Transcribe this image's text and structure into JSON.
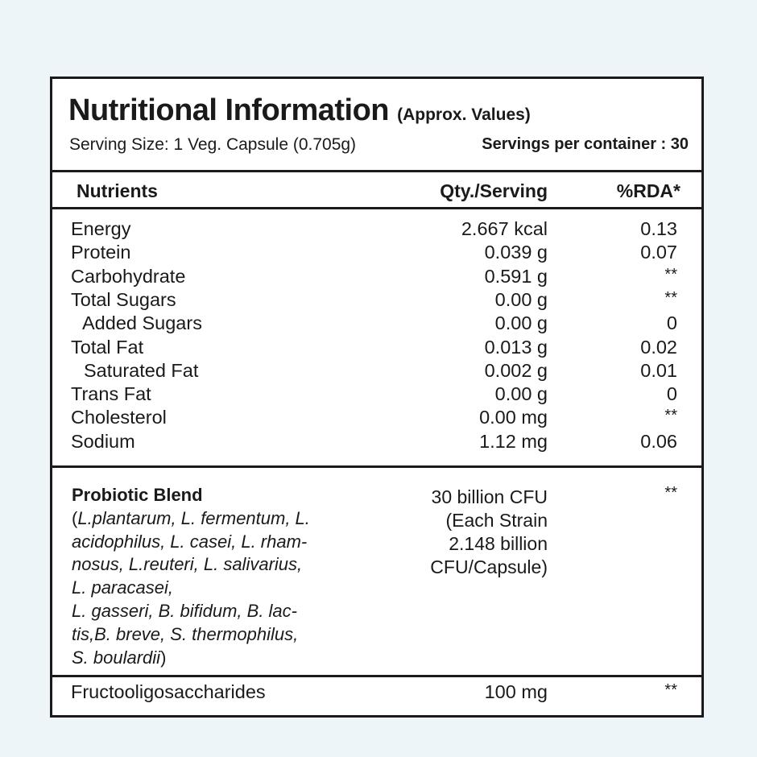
{
  "title": "Nutritional Information",
  "subtitle": "(Approx. Values)",
  "serving_size": "Serving Size: 1 Veg. Capsule (0.705g)",
  "servings_per_container": "Servings per  container : 30",
  "headers": {
    "nutrients": "Nutrients",
    "qty": "Qty./Serving",
    "rda": "%RDA*"
  },
  "rows": [
    {
      "name": "Energy",
      "qty": "2.667 kcal",
      "rda": "0.13"
    },
    {
      "name": "Protein",
      "qty": "0.039 g",
      "rda": "0.07"
    },
    {
      "name": "Carbohydrate",
      "qty": "0.591 g",
      "rda": "**"
    },
    {
      "name": "Total Sugars",
      "qty": "0.00 g",
      "rda": "**"
    },
    {
      "name": "Added Sugars",
      "qty": "0.00 g",
      "rda": "0"
    },
    {
      "name": "Total Fat",
      "qty": "0.013 g",
      "rda": "0.02"
    },
    {
      "name": "Saturated Fat",
      "qty": "0.002 g",
      "rda": "0.01"
    },
    {
      "name": "Trans Fat",
      "qty": "0.00 g",
      "rda": "0"
    },
    {
      "name": "Cholesterol",
      "qty": "0.00 mg",
      "rda": "**"
    },
    {
      "name": "Sodium",
      "qty": "1.12 mg",
      "rda": "0.06"
    }
  ],
  "probiotic": {
    "name": "Probiotic Blend",
    "strain_lines": [
      "(L.plantarum, L. fermentum, L.",
      "acidophilus, L. casei, L. rham-",
      "nosus, L.reuteri, L. salivarius,",
      "L. paracasei,",
      "L. gasseri, B. bifidum, B. lac-",
      "tis,B. breve, S. thermophilus,",
      "S. boulardii)"
    ],
    "qty_lines": [
      "30 billion CFU",
      "(Each Strain",
      "2.148 billion",
      "CFU/Capsule)"
    ],
    "rda": "**"
  },
  "fos": {
    "name": "Fructooligosaccharides",
    "qty": "100 mg",
    "rda": "**"
  }
}
